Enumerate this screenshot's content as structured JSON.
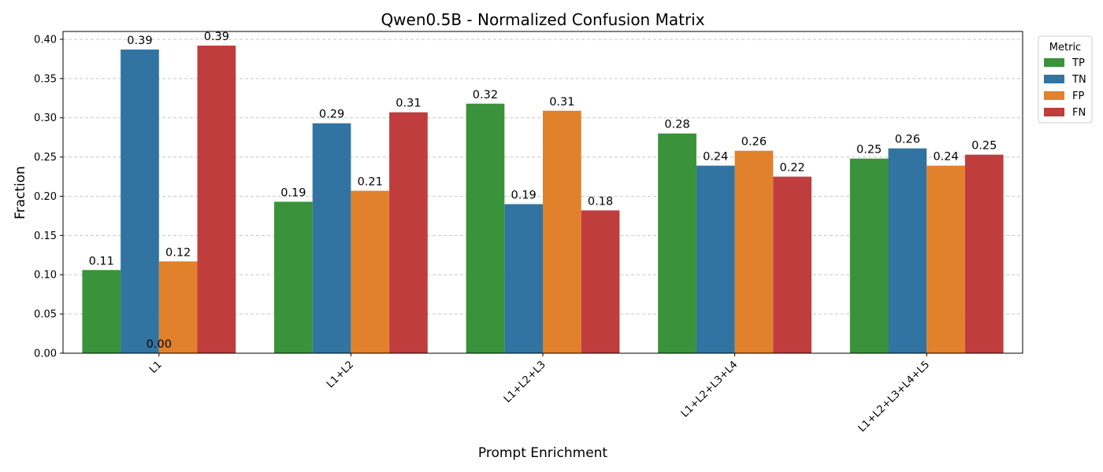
{
  "chart_data": {
    "type": "bar",
    "title": "Qwen0.5B - Normalized Confusion Matrix",
    "xlabel": "Prompt Enrichment",
    "ylabel": "Fraction",
    "categories": [
      "L1",
      "L1+L2",
      "L1+L2+L3",
      "L1+L2+L3+L4",
      "L1+L2+L3+L4+L5"
    ],
    "ylim": [
      0,
      0.41
    ],
    "yticks": [
      "0.00",
      "0.05",
      "0.10",
      "0.15",
      "0.20",
      "0.25",
      "0.30",
      "0.35",
      "0.40"
    ],
    "grid": "y-dashed",
    "legend": {
      "title": "Metric",
      "placement": "outside-top-right"
    },
    "series": [
      {
        "name": "TP",
        "color": "#3a923a",
        "values": [
          0.106,
          0.193,
          0.318,
          0.28,
          0.248
        ],
        "labels": [
          "0.11",
          "0.19",
          "0.32",
          "0.28",
          "0.25"
        ]
      },
      {
        "name": "TN",
        "color": "#3274a1",
        "values": [
          0.387,
          0.293,
          0.19,
          0.239,
          0.261
        ],
        "labels": [
          "0.39",
          "0.29",
          "0.19",
          "0.24",
          "0.26"
        ]
      },
      {
        "name": "FP",
        "color": "#e1812c",
        "values": [
          0.117,
          0.207,
          0.309,
          0.258,
          0.239
        ],
        "labels": [
          "0.12",
          "0.21",
          "0.31",
          "0.26",
          "0.24"
        ]
      },
      {
        "name": "FN",
        "color": "#c03d3e",
        "values": [
          0.392,
          0.307,
          0.182,
          0.225,
          0.253
        ],
        "labels": [
          "0.39",
          "0.31",
          "0.18",
          "0.22",
          "0.25"
        ]
      }
    ],
    "annotations": [
      "0.00"
    ]
  }
}
